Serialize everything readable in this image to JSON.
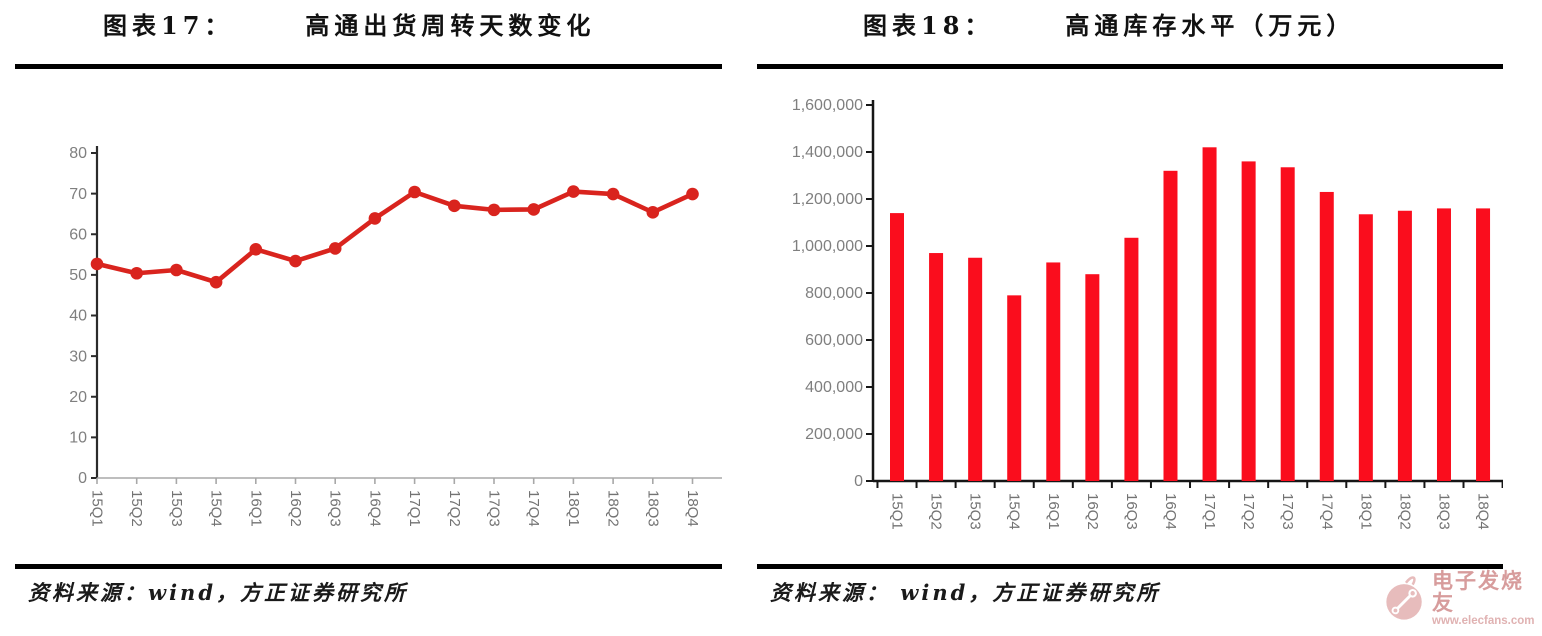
{
  "watermark": {
    "brand": "电子发烧友",
    "site": "www.elecfans.com",
    "color": "#d79c9c"
  },
  "chart_data": [
    {
      "type": "line",
      "figure_label": "图表17：",
      "title": "高通出货周转天数变化",
      "source": "资料来源：wind，方正证券研究所",
      "categories": [
        "15Q1",
        "15Q2",
        "15Q3",
        "15Q4",
        "16Q1",
        "16Q2",
        "16Q3",
        "16Q4",
        "17Q1",
        "17Q2",
        "17Q3",
        "17Q4",
        "18Q1",
        "18Q2",
        "18Q3",
        "18Q4"
      ],
      "values": [
        52.7,
        50.4,
        51.2,
        48.2,
        56.3,
        53.4,
        56.5,
        63.9,
        70.4,
        67.0,
        66.0,
        66.1,
        70.5,
        69.9,
        65.4,
        69.9
      ],
      "ylim": [
        0,
        80
      ],
      "ytick_step": 10,
      "grid": false,
      "legend": "none",
      "line_color": "#d9241e",
      "marker": "circle"
    },
    {
      "type": "bar",
      "figure_label": "图表18：",
      "title": "高通库存水平（万元）",
      "source": "资料来源： wind，方正证券研究所",
      "categories": [
        "15Q1",
        "15Q2",
        "15Q3",
        "15Q4",
        "16Q1",
        "16Q2",
        "16Q3",
        "16Q4",
        "17Q1",
        "17Q2",
        "17Q3",
        "17Q4",
        "18Q1",
        "18Q2",
        "18Q3",
        "18Q4"
      ],
      "values": [
        1140000,
        970000,
        950000,
        790000,
        930000,
        880000,
        1035000,
        1320000,
        1420000,
        1360000,
        1335000,
        1230000,
        1135000,
        1150000,
        1160000,
        1160000
      ],
      "ylim": [
        0,
        1600000
      ],
      "ytick_step": 200000,
      "thousands_separator": true,
      "grid": false,
      "legend": "none",
      "bar_color": "#fa0d1d"
    }
  ]
}
